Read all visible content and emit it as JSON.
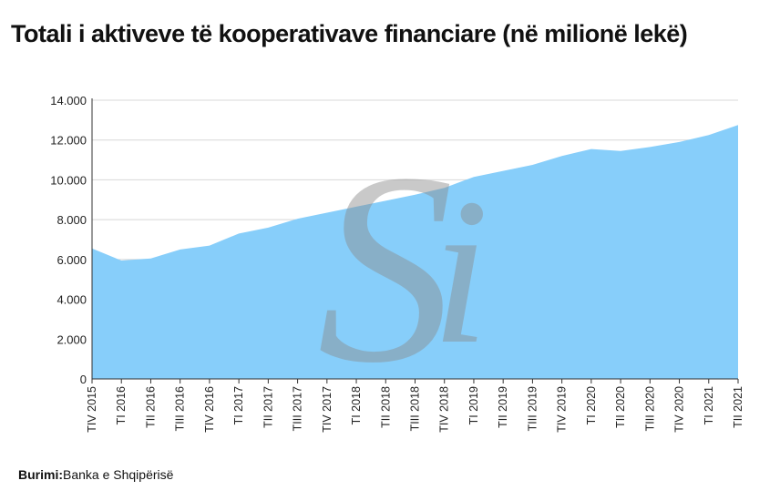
{
  "title": "Totali i aktiveve të kooperativave financiare (në milionë lekë)",
  "source": {
    "label": "Burimi:",
    "text": "Banka e Shqipërisë"
  },
  "watermark": {
    "glyph_primary": "S",
    "glyph_secondary": "i",
    "color": "#8a8a8a"
  },
  "colors": {
    "area": "#87cefa",
    "grid": "#d8d8d8",
    "axis": "#333333"
  },
  "chart_data": {
    "type": "area",
    "title": "Totali i aktiveve të kooperativave financiare (në milionë lekë)",
    "xlabel": "",
    "ylabel": "",
    "ylim": [
      0,
      14000
    ],
    "yticks": [
      0,
      2000,
      4000,
      6000,
      8000,
      10000,
      12000,
      14000
    ],
    "ytick_labels": [
      "0",
      "2.000",
      "4.000",
      "6.000",
      "8.000",
      "10.000",
      "12.000",
      "14.000"
    ],
    "grid": true,
    "legend": "none",
    "categories": [
      "TIV 2015",
      "TI 2016",
      "TII 2016",
      "TIII 2016",
      "TIV 2016",
      "TI 2017",
      "TII 2017",
      "TIII 2017",
      "TIV 2017",
      "TI 2018",
      "TII 2018",
      "TIII 2018",
      "TIV 2018",
      "TI 2019",
      "TII 2019",
      "TIII 2019",
      "TIV 2019",
      "TI 2020",
      "TII 2020",
      "TIII 2020",
      "TIV 2020",
      "TI 2021",
      "TII 2021"
    ],
    "series": [
      {
        "values": [
          6550,
          5950,
          6050,
          6500,
          6700,
          7300,
          7600,
          8050,
          8350,
          8650,
          8950,
          9250,
          9600,
          10150,
          10450,
          10750,
          11200,
          11550,
          11450,
          11650,
          11900,
          12250,
          12750
        ]
      }
    ]
  }
}
